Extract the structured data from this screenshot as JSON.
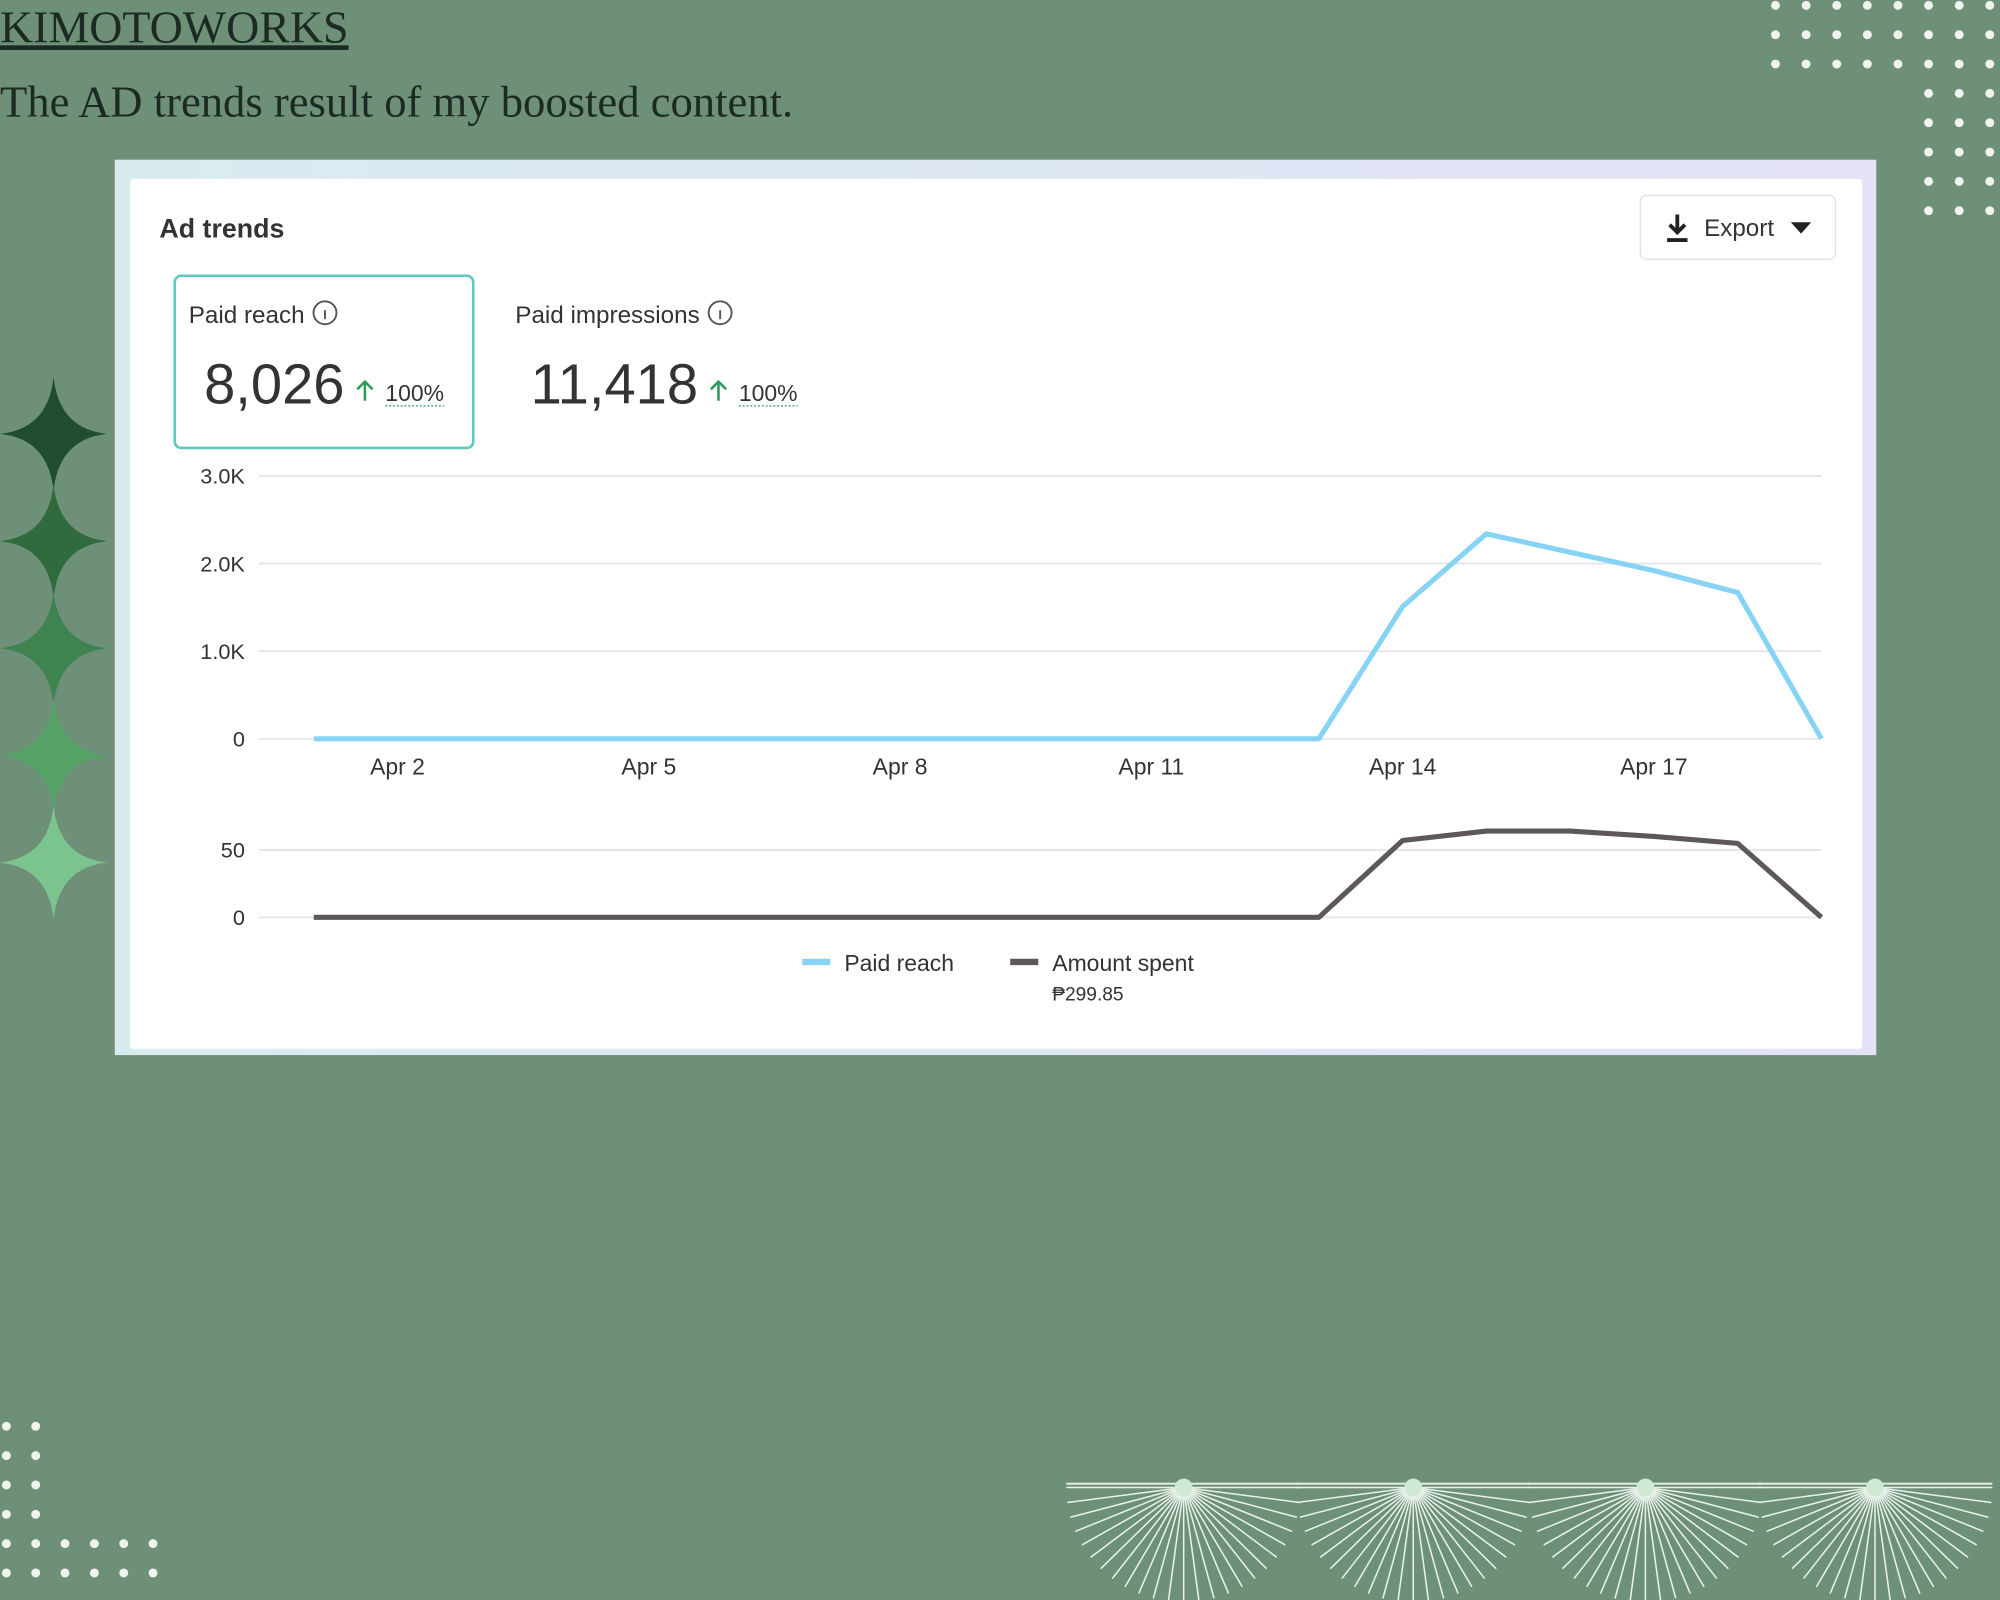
{
  "header": {
    "title": "KIMOTOWORKS",
    "subtitle": "The AD trends result of my boosted content."
  },
  "card": {
    "title": "Ad trends",
    "export": "Export",
    "metrics": [
      {
        "label": "Paid reach",
        "value": "8,026",
        "change": "100%"
      },
      {
        "label": "Paid impressions",
        "value": "11,418",
        "change": "100%"
      }
    ],
    "legend_note": "₱299.85"
  },
  "chart_data": [
    {
      "type": "line",
      "categories": [
        null,
        "Apr 2",
        null,
        null,
        "Apr 5",
        null,
        null,
        "Apr 8",
        null,
        null,
        "Apr 11",
        null,
        null,
        "Apr 14",
        null,
        null,
        "Apr 17",
        null,
        null
      ],
      "series": [
        {
          "name": "Paid reach",
          "color": "#86d3f5",
          "values": [
            0,
            0,
            0,
            0,
            0,
            0,
            0,
            0,
            0,
            0,
            0,
            0,
            0,
            1510,
            2340,
            2130,
            1920,
            1670,
            0
          ]
        }
      ],
      "ylim": [
        0,
        3000
      ],
      "yticks": [
        0,
        {
          "value": 1000,
          "label": "1.0K"
        },
        {
          "value": 2000,
          "label": "2.0K"
        },
        {
          "value": 3000,
          "label": "3.0K"
        }
      ],
      "grid": true
    },
    {
      "type": "line",
      "series": [
        {
          "name": "Amount spent",
          "color": "#5e585a",
          "values": [
            0,
            0,
            0,
            0,
            0,
            0,
            0,
            0,
            0,
            0,
            0,
            0,
            0,
            57,
            64,
            64,
            60,
            54.85,
            0
          ]
        }
      ],
      "ylim": [
        0,
        70
      ],
      "yticks": [
        0,
        50
      ],
      "grid": true
    }
  ]
}
